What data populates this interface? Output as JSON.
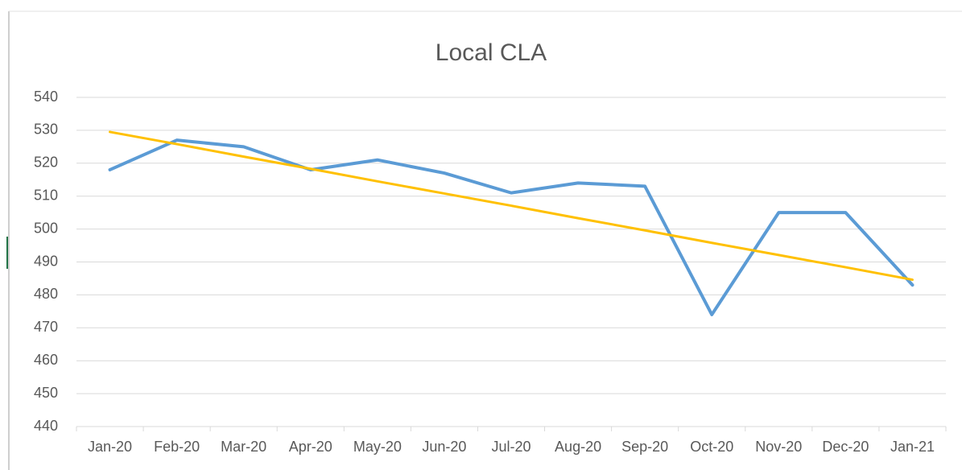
{
  "chart_data": {
    "type": "line",
    "title": "Local CLA",
    "categories": [
      "Jan-20",
      "Feb-20",
      "Mar-20",
      "Apr-20",
      "May-20",
      "Jun-20",
      "Jul-20",
      "Aug-20",
      "Sep-20",
      "Oct-20",
      "Nov-20",
      "Dec-20",
      "Jan-21"
    ],
    "values": [
      518,
      527,
      525,
      518,
      521,
      517,
      511,
      514,
      513,
      474,
      505,
      505,
      483
    ],
    "color": "#5b9bd5",
    "trendline": {
      "color": "#ffc000",
      "values": [
        529.5,
        525.8,
        522.0,
        518.3,
        514.5,
        510.8,
        507.1,
        503.3,
        499.6,
        495.8,
        492.1,
        488.4,
        484.6
      ]
    },
    "ylim": [
      440,
      540
    ],
    "yticks": [
      440,
      450,
      460,
      470,
      480,
      490,
      500,
      510,
      520,
      530,
      540
    ],
    "grid": true
  }
}
